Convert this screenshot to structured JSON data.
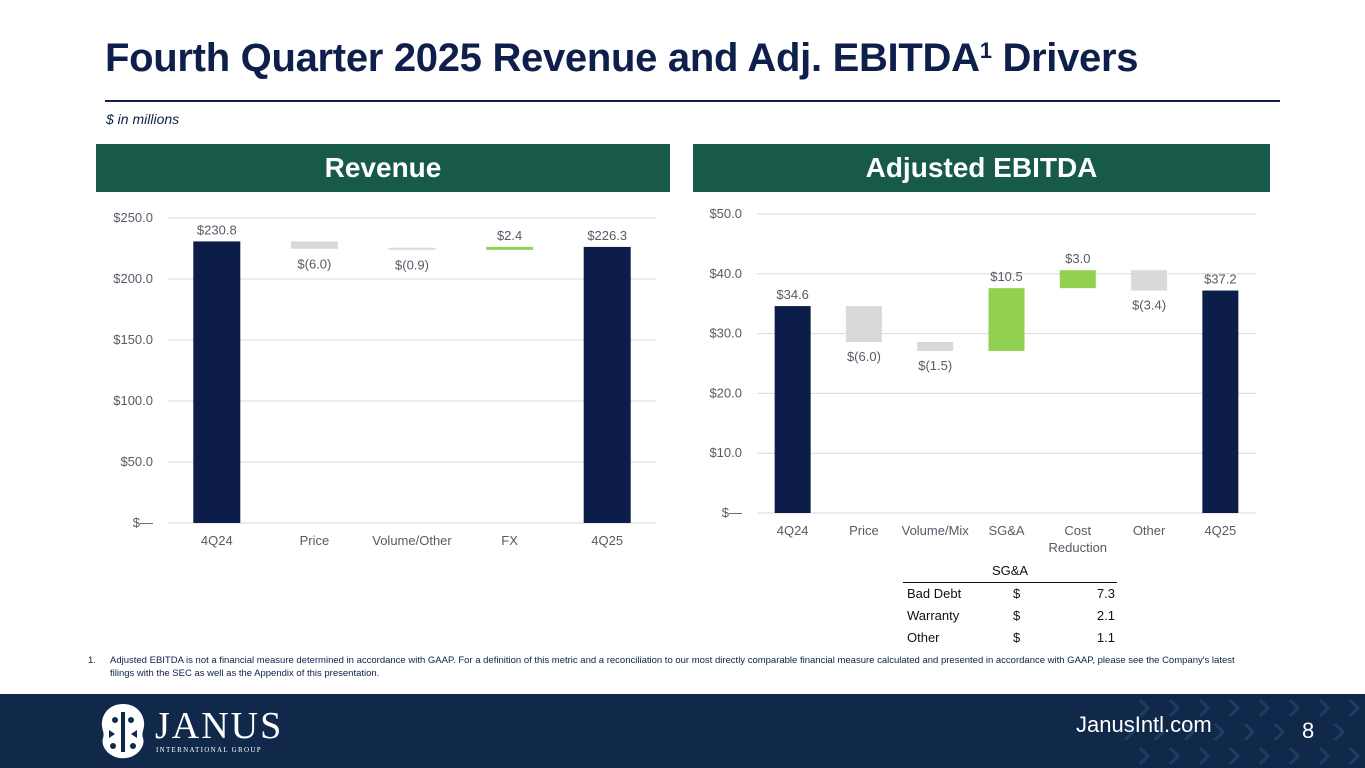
{
  "page": {
    "title": "Fourth Quarter 2025 Revenue and Adj. EBITDA",
    "title_superscript": "1",
    "title_suffix": " Drivers",
    "units_note": "$ in millions",
    "page_number": "8",
    "website": "JanusIntl.com"
  },
  "panels": {
    "revenue_header": "Revenue",
    "ebitda_header": "Adjusted EBITDA"
  },
  "logo": {
    "name": "JANUS",
    "subtitle": "INTERNATIONAL GROUP"
  },
  "colors": {
    "total_bar": "#0b1d48",
    "decrease_bar": "#d9d9d9",
    "increase_bar": "#92d14f",
    "header_bg": "#175a4a",
    "footer_bg": "#10294b"
  },
  "chart_data": [
    {
      "type": "bar",
      "subtype": "waterfall",
      "title": "Revenue",
      "categories": [
        "4Q24",
        "Price",
        "Volume/Other",
        "FX",
        "4Q25"
      ],
      "values": [
        230.8,
        -6.0,
        -0.9,
        2.4,
        226.3
      ],
      "value_labels": [
        "$230.8",
        "$(6.0)",
        "$(0.9)",
        "$2.4",
        "$226.3"
      ],
      "kinds": [
        "total",
        "decrease",
        "decrease",
        "increase",
        "total"
      ],
      "ylim": [
        0,
        250
      ],
      "yticks": [
        0,
        50,
        100,
        150,
        200,
        250
      ],
      "ytick_labels": [
        "$—",
        "$50.0",
        "$100.0",
        "$150.0",
        "$200.0",
        "$250.0"
      ],
      "grid": true
    },
    {
      "type": "bar",
      "subtype": "waterfall",
      "title": "Adjusted EBITDA",
      "categories": [
        "4Q24",
        "Price",
        "Volume/Mix",
        "SG&A",
        "Cost Reduction",
        "Other",
        "4Q25"
      ],
      "category_lines": [
        [
          "4Q24"
        ],
        [
          "Price"
        ],
        [
          "Volume/Mix"
        ],
        [
          "SG&A"
        ],
        [
          "Cost",
          "Reduction"
        ],
        [
          "Other"
        ],
        [
          "4Q25"
        ]
      ],
      "values": [
        34.6,
        -6.0,
        -1.5,
        10.5,
        3.0,
        -3.4,
        37.2
      ],
      "value_labels": [
        "$34.6",
        "$(6.0)",
        "$(1.5)",
        "$10.5",
        "$3.0",
        "$(3.4)",
        "$37.2"
      ],
      "kinds": [
        "total",
        "decrease",
        "decrease",
        "increase",
        "increase",
        "decrease",
        "total"
      ],
      "label_positions": [
        "above",
        "below",
        "below",
        "above",
        "above",
        "below",
        "above"
      ],
      "ylim": [
        0,
        50
      ],
      "yticks": [
        0,
        10,
        20,
        30,
        40,
        50
      ],
      "ytick_labels": [
        "$—",
        "$10.0",
        "$20.0",
        "$30.0",
        "$40.0",
        "$50.0"
      ],
      "grid": true
    }
  ],
  "sga_table": {
    "header": "SG&A",
    "rows": [
      {
        "label": "Bad Debt",
        "currency": "$",
        "value": "7.3"
      },
      {
        "label": "Warranty",
        "currency": "$",
        "value": "2.1"
      },
      {
        "label": "Other",
        "currency": "$",
        "value": "1.1"
      }
    ]
  },
  "footnote": {
    "number": "1.",
    "text": "Adjusted EBITDA is not a financial measure determined in accordance with GAAP. For a definition of this metric and a reconciliation to our most directly comparable financial measure calculated and presented in accordance with GAAP, please see the Company's latest filings with the SEC as well as the Appendix of this presentation."
  }
}
